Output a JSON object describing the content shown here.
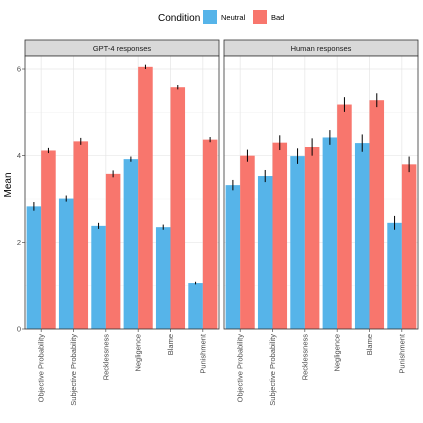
{
  "chart_data": {
    "type": "bar",
    "legend": {
      "title": "Condition",
      "position": "top",
      "entries": [
        {
          "name": "Neutral",
          "color": "#56B4E9"
        },
        {
          "name": "Bad",
          "color": "#F8766D"
        }
      ]
    },
    "ylabel": "Mean",
    "ylim": [
      0,
      6.3
    ],
    "yticks": [
      0,
      2,
      4,
      6
    ],
    "grid": true,
    "categories": [
      "Objective Probability",
      "Subjective Probability",
      "Recklessness",
      "Negligence",
      "Blame",
      "Punishment"
    ],
    "panels": [
      {
        "title": "GPT-4 responses",
        "series": [
          {
            "name": "Neutral",
            "values": [
              2.83,
              3.01,
              2.38,
              3.92,
              2.35,
              1.06
            ],
            "errors": [
              0.1,
              0.07,
              0.07,
              0.06,
              0.06,
              0.03
            ]
          },
          {
            "name": "Bad",
            "values": [
              4.12,
              4.33,
              3.58,
              6.05,
              5.58,
              4.37
            ],
            "errors": [
              0.06,
              0.08,
              0.08,
              0.05,
              0.05,
              0.06
            ]
          }
        ]
      },
      {
        "title": "Human responses",
        "series": [
          {
            "name": "Neutral",
            "values": [
              3.32,
              3.53,
              3.99,
              4.42,
              4.29,
              2.45
            ],
            "errors": [
              0.12,
              0.14,
              0.18,
              0.17,
              0.2,
              0.16
            ]
          },
          {
            "name": "Bad",
            "values": [
              4.0,
              4.3,
              4.2,
              5.18,
              5.28,
              3.8
            ],
            "errors": [
              0.14,
              0.17,
              0.2,
              0.17,
              0.16,
              0.18
            ]
          }
        ]
      }
    ]
  }
}
